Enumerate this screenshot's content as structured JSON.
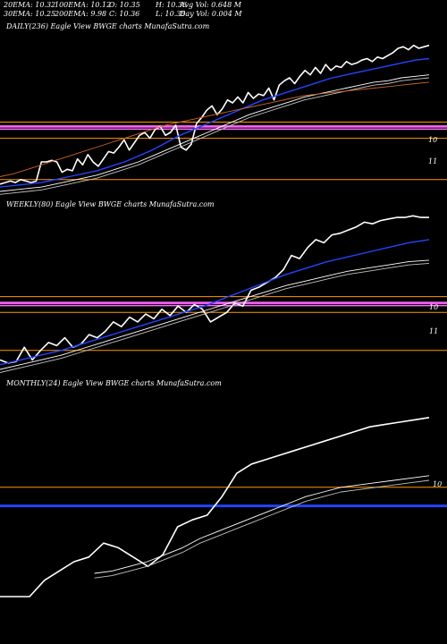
{
  "header": {
    "ema20": "20EMA: 10.32",
    "ema100": "100EMA: 10.12",
    "open": "O: 10.35",
    "high": "H: 10.36",
    "avg_vol": "Avg Vol: 0.648  M",
    "ema30": "30EMA: 10.25",
    "ema200": "200EMA: 9.98",
    "close": "C: 10.36",
    "low": "L: 10.35",
    "day_vol": "Day Vol: 0.004  M"
  },
  "colors": {
    "background": "#000000",
    "price": "#ffffff",
    "ema_fast": "#2244ff",
    "ema_mid": "#ffffff",
    "ema_slow": "#c0c0c0",
    "ema_long": "#cc6622",
    "level_magenta": "#ff66ff",
    "level_orange": "#ff9900"
  },
  "chart_data": [
    {
      "type": "line",
      "title": "DAILY(236) Eagle  View  BWGE charts MunafaSutra.com",
      "y_tick_labels": [
        "10",
        "11"
      ],
      "series": [
        {
          "key": "price",
          "color": "#ffffff",
          "values": [
            0.05,
            0.06,
            0.07,
            0.06,
            0.08,
            0.07,
            0.06,
            0.07,
            0.2,
            0.2,
            0.21,
            0.2,
            0.13,
            0.15,
            0.14,
            0.22,
            0.18,
            0.25,
            0.2,
            0.17,
            0.22,
            0.27,
            0.26,
            0.3,
            0.35,
            0.28,
            0.33,
            0.38,
            0.4,
            0.36,
            0.42,
            0.44,
            0.38,
            0.4,
            0.45,
            0.3,
            0.28,
            0.32,
            0.46,
            0.5,
            0.55,
            0.58,
            0.52,
            0.56,
            0.62,
            0.6,
            0.64,
            0.6,
            0.67,
            0.63,
            0.66,
            0.65,
            0.7,
            0.62,
            0.72,
            0.75,
            0.77,
            0.73,
            0.78,
            0.82,
            0.79,
            0.84,
            0.8,
            0.86,
            0.82,
            0.85,
            0.84,
            0.88,
            0.86,
            0.87,
            0.89,
            0.9,
            0.88,
            0.91,
            0.9,
            0.92,
            0.94,
            0.97,
            0.98,
            0.96,
            0.99,
            0.97,
            0.98,
            0.99
          ]
        },
        {
          "key": "ema_fast",
          "color": "#2244ff",
          "values": [
            0.03,
            0.04,
            0.05,
            0.06,
            0.08,
            0.1,
            0.12,
            0.14,
            0.17,
            0.2,
            0.24,
            0.28,
            0.33,
            0.38,
            0.42,
            0.46,
            0.5,
            0.54,
            0.58,
            0.62,
            0.65,
            0.68,
            0.71,
            0.74,
            0.77,
            0.79,
            0.81,
            0.83,
            0.85,
            0.87,
            0.89,
            0.9
          ]
        },
        {
          "key": "ema_mid",
          "color": "#ffffff",
          "values": [
            0.0,
            0.01,
            0.02,
            0.03,
            0.05,
            0.07,
            0.09,
            0.11,
            0.14,
            0.17,
            0.2,
            0.24,
            0.28,
            0.32,
            0.36,
            0.4,
            0.44,
            0.48,
            0.52,
            0.55,
            0.58,
            0.61,
            0.64,
            0.66,
            0.68,
            0.7,
            0.72,
            0.74,
            0.75,
            0.77,
            0.78,
            0.79
          ]
        },
        {
          "key": "ema_slow",
          "color": "#c0c0c0",
          "values": [
            -0.02,
            -0.01,
            0.0,
            0.01,
            0.03,
            0.05,
            0.07,
            0.09,
            0.12,
            0.15,
            0.18,
            0.22,
            0.26,
            0.3,
            0.34,
            0.38,
            0.42,
            0.46,
            0.5,
            0.53,
            0.56,
            0.59,
            0.62,
            0.64,
            0.66,
            0.68,
            0.7,
            0.72,
            0.73,
            0.75,
            0.76,
            0.77
          ]
        },
        {
          "key": "ema_long",
          "color": "#cc6622",
          "values": [
            0.1,
            0.12,
            0.15,
            0.18,
            0.21,
            0.24,
            0.27,
            0.3,
            0.33,
            0.36,
            0.39,
            0.42,
            0.45,
            0.47,
            0.49,
            0.51,
            0.53,
            0.55,
            0.57,
            0.59,
            0.61,
            0.63,
            0.65,
            0.66,
            0.67,
            0.68,
            0.69,
            0.7,
            0.71,
            0.72,
            0.73,
            0.74
          ]
        }
      ],
      "levels": [
        {
          "color": "#ff66ff",
          "value": 0.44
        },
        {
          "color": "#ff9900",
          "value": 0.47
        },
        {
          "color": "#ff9900",
          "value": 0.36
        },
        {
          "color": "#ff9900",
          "value": 0.08
        }
      ]
    },
    {
      "type": "line",
      "title": "WEEKLY(80) Eagle  View  BWGE charts MunafaSutra.com",
      "y_tick_labels": [
        "10",
        "11"
      ],
      "series": [
        {
          "key": "price",
          "color": "#ffffff",
          "values": [
            0.06,
            0.04,
            0.05,
            0.14,
            0.06,
            0.12,
            0.17,
            0.15,
            0.2,
            0.14,
            0.16,
            0.22,
            0.2,
            0.24,
            0.3,
            0.27,
            0.33,
            0.3,
            0.35,
            0.32,
            0.38,
            0.34,
            0.4,
            0.36,
            0.41,
            0.38,
            0.3,
            0.33,
            0.36,
            0.42,
            0.4,
            0.5,
            0.52,
            0.55,
            0.58,
            0.63,
            0.72,
            0.7,
            0.77,
            0.82,
            0.8,
            0.85,
            0.86,
            0.88,
            0.9,
            0.93,
            0.92,
            0.94,
            0.95,
            0.96,
            0.96,
            0.97,
            0.96,
            0.96
          ]
        },
        {
          "key": "ema_fast",
          "color": "#2244ff",
          "values": [
            0.03,
            0.06,
            0.09,
            0.12,
            0.16,
            0.2,
            0.24,
            0.28,
            0.32,
            0.36,
            0.4,
            0.45,
            0.5,
            0.55,
            0.6,
            0.64,
            0.68,
            0.71,
            0.74,
            0.77,
            0.8,
            0.82
          ]
        },
        {
          "key": "ema_mid",
          "color": "#ffffff",
          "values": [
            0.0,
            0.03,
            0.06,
            0.09,
            0.13,
            0.17,
            0.21,
            0.25,
            0.29,
            0.33,
            0.37,
            0.41,
            0.45,
            0.49,
            0.53,
            0.56,
            0.59,
            0.62,
            0.64,
            0.66,
            0.68,
            0.69
          ]
        },
        {
          "key": "ema_slow",
          "color": "#c0c0c0",
          "values": [
            -0.02,
            0.01,
            0.04,
            0.07,
            0.11,
            0.15,
            0.19,
            0.23,
            0.27,
            0.31,
            0.35,
            0.39,
            0.43,
            0.47,
            0.51,
            0.54,
            0.57,
            0.6,
            0.62,
            0.64,
            0.66,
            0.67
          ]
        }
      ],
      "levels": [
        {
          "color": "#ff66ff",
          "value": 0.42
        },
        {
          "color": "#ff9900",
          "value": 0.46
        },
        {
          "color": "#ff9900",
          "value": 0.36
        },
        {
          "color": "#ff9900",
          "value": 0.12
        }
      ]
    },
    {
      "type": "line",
      "title": "MONTHLY(24) Eagle  View  BWGE charts MunafaSutra.com",
      "y_tick_labels": [
        "10"
      ],
      "series": [
        {
          "key": "price",
          "color": "#ffffff",
          "values": [
            0.15,
            0.15,
            0.15,
            0.22,
            0.26,
            0.3,
            0.32,
            0.38,
            0.36,
            0.32,
            0.28,
            0.33,
            0.45,
            0.48,
            0.5,
            0.58,
            0.68,
            0.72,
            0.74,
            0.76,
            0.78,
            0.8,
            0.82,
            0.84,
            0.86,
            0.88,
            0.89,
            0.9,
            0.91,
            0.92
          ]
        },
        {
          "key": "ema_mid",
          "color": "#ffffff",
          "values": [
            0.25,
            0.26,
            0.28,
            0.3,
            0.33,
            0.36,
            0.4,
            0.43,
            0.46,
            0.49,
            0.52,
            0.55,
            0.58,
            0.6,
            0.62,
            0.63,
            0.64,
            0.65,
            0.66,
            0.67
          ]
        },
        {
          "key": "ema_slow",
          "color": "#c0c0c0",
          "values": [
            0.23,
            0.24,
            0.26,
            0.28,
            0.31,
            0.34,
            0.38,
            0.41,
            0.44,
            0.47,
            0.5,
            0.53,
            0.56,
            0.58,
            0.6,
            0.61,
            0.62,
            0.63,
            0.64,
            0.65
          ]
        }
      ],
      "levels": [
        {
          "color": "#ff9900",
          "value": 0.62
        },
        {
          "color": "#2244ff",
          "value": 0.54
        }
      ]
    }
  ]
}
